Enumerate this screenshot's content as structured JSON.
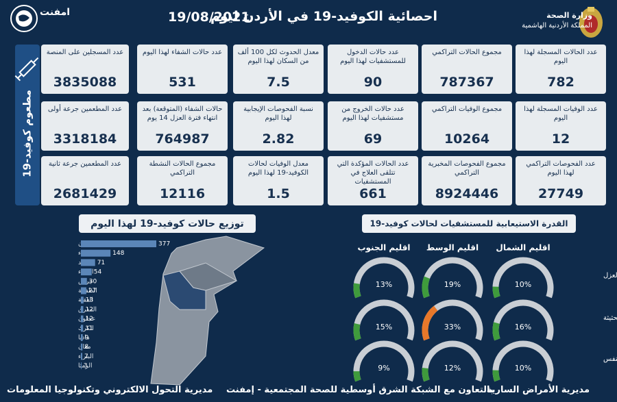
{
  "header": {
    "ministry": "وزارة الصحة",
    "kingdom": "المملكة الأردنية الهاشمية",
    "title": "احصائية الكوفيد-19 في الأردن ليوم",
    "date": "19/08/2021",
    "partner": "امفنت"
  },
  "stats": [
    [
      {
        "label": "عدد الحالات المسجلة لهذا اليوم",
        "value": 782
      },
      {
        "label": "مجموع الحالات التراكمي",
        "value": 787367
      },
      {
        "label": "عدد حالات الدخول للمستشفيات لهذا اليوم",
        "value": 90
      },
      {
        "label": "معدل الحدوث لكل 100 ألف من السكان لهذا اليوم",
        "value": 7.5
      },
      {
        "label": "عدد حالات الشفاء لهذا اليوم",
        "value": 531
      }
    ],
    [
      {
        "label": "عدد الوفيات المسجلة لهذا اليوم",
        "value": 12
      },
      {
        "label": "مجموع الوفيات التراكمي",
        "value": 10264
      },
      {
        "label": "عدد حالات الخروج من مستشفيات لهذا اليوم",
        "value": 69
      },
      {
        "label": "نسبة الفحوصات الإيجابية لهذا اليوم",
        "value": 2.82
      },
      {
        "label": "حالات الشفاء (المتوقعة) بعد انتهاء فترة العزل 14 يوم",
        "value": 764987
      }
    ],
    [
      {
        "label": "عدد الفحوصات التراكمي لهذا اليوم",
        "value": 27749
      },
      {
        "label": "مجموع الفحوصات المخبرية التراكمي",
        "value": 8924446
      },
      {
        "label": "عدد الحالات المؤكدة التي تتلقى العلاج في المستشفيات",
        "value": 661
      },
      {
        "label": "معدل الوفيات لحالات الكوفيد-19 لهذا اليوم",
        "value": 1.5
      },
      {
        "label": "مجموع الحالات النشطة التراكمي",
        "value": 12116
      }
    ]
  ],
  "vaccination": {
    "title": "مطعوم كوفيد-19",
    "cards": [
      {
        "label": "عدد المسجلين على المنصة",
        "value": 3835088
      },
      {
        "label": "عدد المطعمين جرعة أولى",
        "value": 3318184
      },
      {
        "label": "عدد المطعمين جرعة ثانية",
        "value": 2681429
      }
    ]
  },
  "chart_data": [
    {
      "type": "bar",
      "title": "توزيع حالات كوفيد-19 لهذا اليوم",
      "color": "#5b86b8",
      "categories": [
        "عمان",
        "الزرقاء",
        "اربد",
        "البلقاء",
        "جرش",
        "الطفيلة",
        "العقبة",
        "المفرق",
        "عجلون",
        "الكرك",
        "مادبا",
        "معان",
        "البتراء",
        "الرمثا"
      ],
      "values": [
        377,
        148,
        71,
        54,
        30,
        27,
        13,
        12,
        12,
        11,
        9,
        8,
        7,
        3
      ]
    },
    {
      "type": "gauge",
      "title": "القدرة الاستيعابية للمستشفيات لحالات كوفيد-19",
      "categories": [
        "نسبة اشغال اسرة العزل",
        "نسبة اشغال اسرة العناية الحثيثة",
        "نسبة اشغال اجهزة التنفس"
      ],
      "series": [
        {
          "name": "اقليم الشمال",
          "values": [
            10,
            16,
            10
          ],
          "value_labels": [
            "10%",
            "16%",
            "10%"
          ],
          "colors": [
            "#3f9b3c",
            "#3f9b3c",
            "#3f9b3c"
          ]
        },
        {
          "name": "اقليم الوسط",
          "values": [
            19,
            33,
            12
          ],
          "value_labels": [
            "19%",
            "33%",
            "12%"
          ],
          "colors": [
            "#3f9b3c",
            "#e8782a",
            "#3f9b3c"
          ]
        },
        {
          "name": "اقليم الجنوب",
          "values": [
            13,
            15,
            9
          ],
          "value_labels": [
            "13%",
            "15%",
            "9%"
          ],
          "colors": [
            "#3f9b3c",
            "#3f9b3c",
            "#3f9b3c"
          ]
        }
      ]
    }
  ],
  "footer": {
    "right": "مديرية الأمراض السارية",
    "center": "بالتعاون مع الشبكة الشرق أوسطية للصحة المجتمعية - إمفنت",
    "left": "مديرية التحول الالكتروني وتكنولوجيا المعلومات"
  }
}
